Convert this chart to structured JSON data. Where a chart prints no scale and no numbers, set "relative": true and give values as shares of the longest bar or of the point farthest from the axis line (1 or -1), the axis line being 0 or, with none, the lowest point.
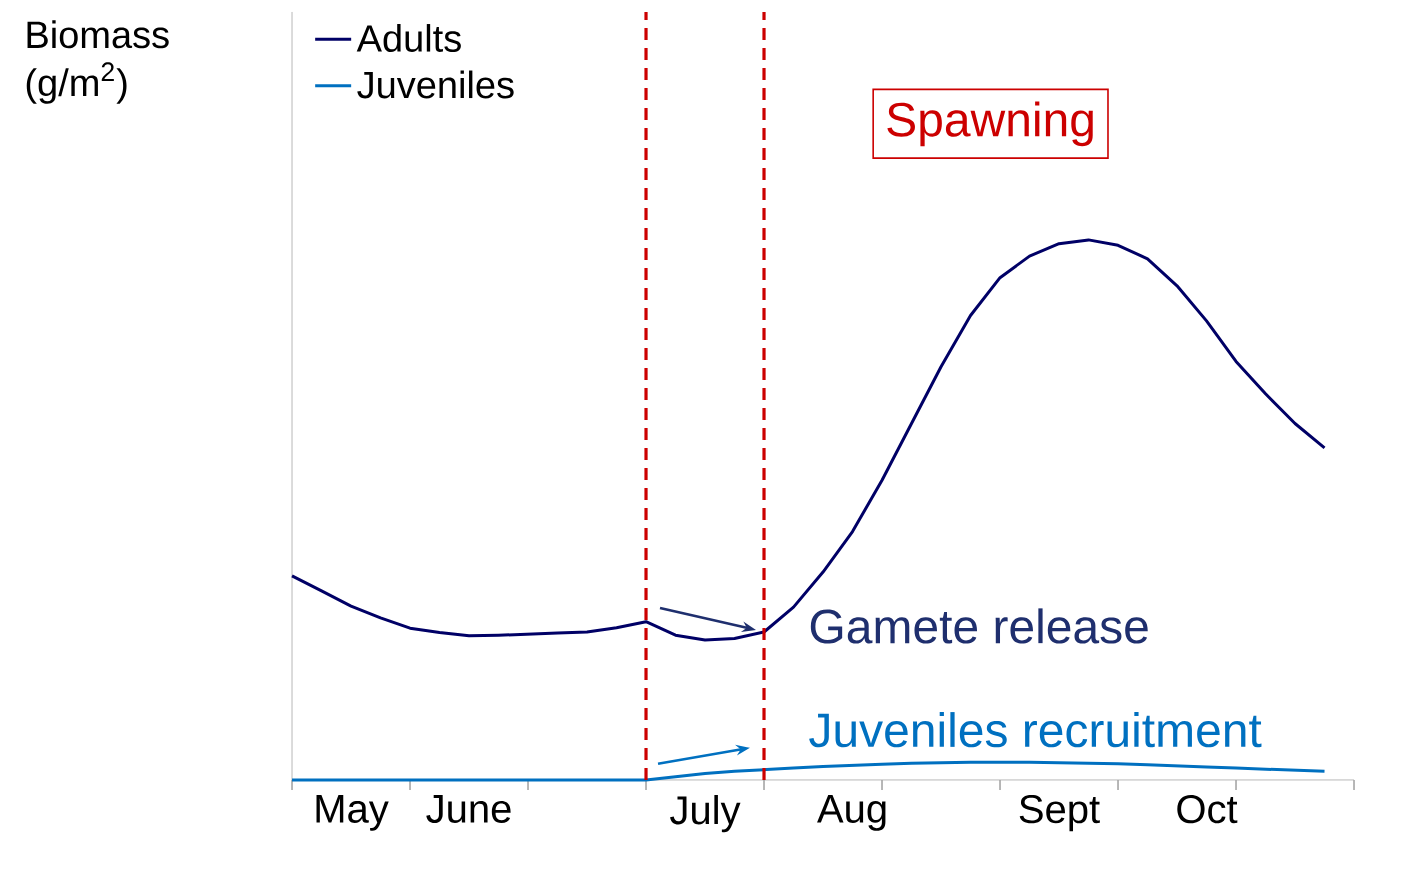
{
  "chart_data": {
    "type": "line",
    "relative": true,
    "ylabel": "Biomass (g/m$^{2}$)",
    "legend": "top left",
    "marker": "none",
    "line_style": "solid",
    "categories": [
      null,
      null,
      "May",
      null,
      null,
      null,
      "June",
      null,
      null,
      null,
      null,
      null,
      null,
      null,
      "July",
      null,
      null,
      null,
      null,
      "Aug",
      null,
      null,
      null,
      null,
      null,
      null,
      "Sept",
      null,
      null,
      null,
      null,
      "Oct",
      null,
      null,
      null,
      null,
      null
    ],
    "series": [
      {
        "name": "Adults",
        "color": "#000066",
        "values": [
          0.378,
          0.35,
          0.322,
          0.3,
          0.281,
          0.273,
          0.267,
          0.268,
          0.27,
          0.272,
          0.274,
          0.282,
          0.293,
          0.268,
          0.259,
          0.262,
          0.274,
          0.32,
          0.385,
          0.46,
          0.555,
          0.66,
          0.765,
          0.86,
          0.93,
          0.97,
          0.993,
          1.0,
          0.99,
          0.965,
          0.915,
          0.85,
          0.775,
          0.715,
          0.66,
          0.615,
          null
        ]
      },
      {
        "name": "Juveniles",
        "color": "#0070c0",
        "values": [
          0,
          0,
          0,
          0,
          0,
          0,
          0,
          0,
          0,
          0,
          0,
          0,
          0,
          0.006,
          0.012,
          0.016,
          0.019,
          0.022,
          0.025,
          0.027,
          0.029,
          0.031,
          0.032,
          0.033,
          0.033,
          0.033,
          0.032,
          0.031,
          0.03,
          0.028,
          0.026,
          0.024,
          0.022,
          0.02,
          0.018,
          0.016,
          null
        ]
      }
    ],
    "annotations": [
      "Spawning",
      "Gamete release",
      "Juveniles recruitment"
    ]
  }
}
